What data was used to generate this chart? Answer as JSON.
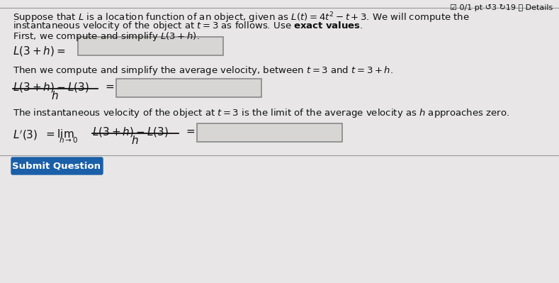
{
  "bg_color": "#e8e6e6",
  "content_bg": "#e8e6e6",
  "header_text": "☑ 0/1 pt ↺3 ↻19 ⓘ Details",
  "button_text": "Submit Question",
  "button_color": "#1a5fa8",
  "button_text_color": "white",
  "input_box_color": "#d8d5d5",
  "input_box_border": "#888888",
  "text_color": "#111111",
  "line_color": "#999999",
  "figw": 7.89,
  "figh": 3.99,
  "dpi": 100
}
